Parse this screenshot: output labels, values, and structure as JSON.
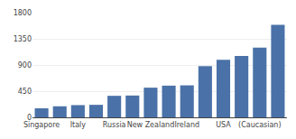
{
  "chart_data": {
    "type": "bar",
    "categories": [
      "Singapore",
      null,
      "Italy",
      null,
      "Russia",
      null,
      "New Zealand",
      null,
      "Ireland",
      null,
      "USA",
      null,
      "(Caucasian)",
      null
    ],
    "values": [
      155,
      190,
      210,
      215,
      370,
      375,
      510,
      545,
      550,
      880,
      990,
      1055,
      1200,
      1590
    ],
    "color": "#4a72a8",
    "ylim": [
      0,
      1800
    ],
    "yticks": [
      0,
      450,
      900,
      1350,
      1800
    ],
    "grid": true
  }
}
